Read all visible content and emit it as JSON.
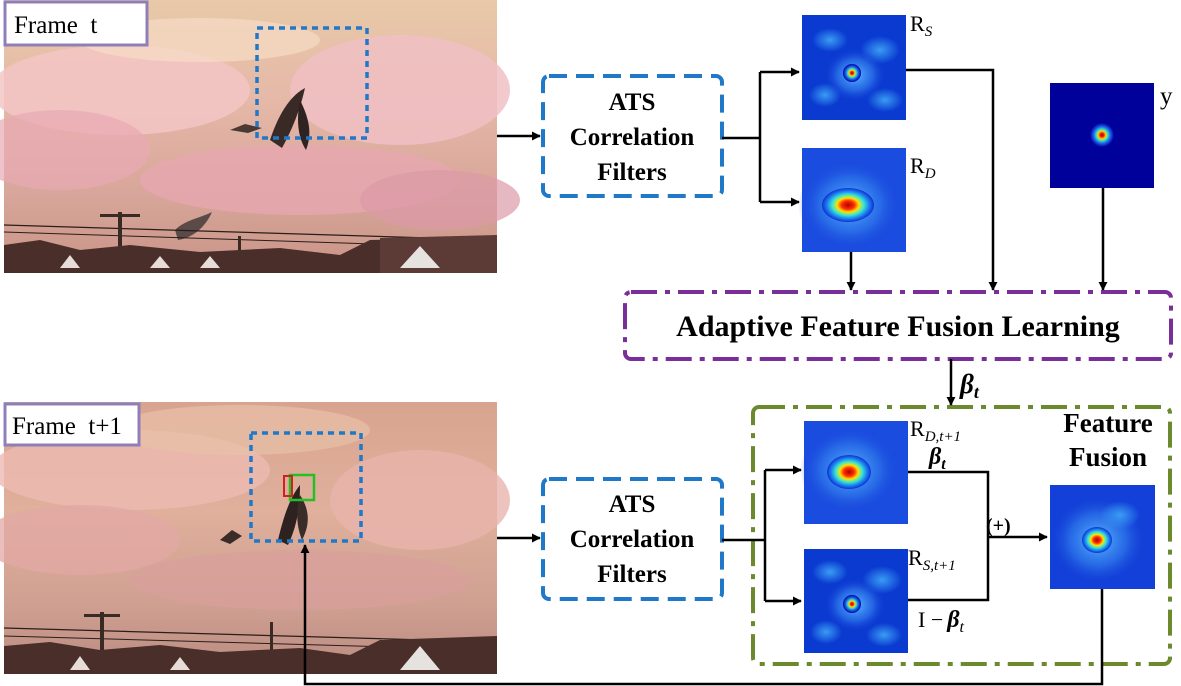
{
  "frames": {
    "top": {
      "label": "Frame  t"
    },
    "bottom": {
      "label": "Frame  t+1"
    }
  },
  "filters": {
    "top": [
      "ATS",
      "Correlation",
      "Filters"
    ],
    "bottom": [
      "ATS",
      "Correlation",
      "Filters"
    ]
  },
  "maps": {
    "rs": "R",
    "rs_sub": "S",
    "rd": "R",
    "rd_sub": "D",
    "y": "y",
    "rd_next": "R",
    "rd_next_sub": "D,t+1",
    "rs_next": "R",
    "rs_next_sub": "S,t+1"
  },
  "fusion_learning": {
    "label": "Adaptive Feature Fusion Learning"
  },
  "beta": {
    "symbol": "β",
    "sub": "t"
  },
  "feature_fusion": {
    "title_line1": "Feature",
    "title_line2": "Fusion"
  },
  "operators": {
    "plus": "(+)",
    "one_minus": "I −"
  },
  "colors": {
    "blue_dash": "#1f78c8",
    "purple": "#7a2e9a",
    "green": "#6b8a2e",
    "frame_border": "#8f7fb8"
  }
}
